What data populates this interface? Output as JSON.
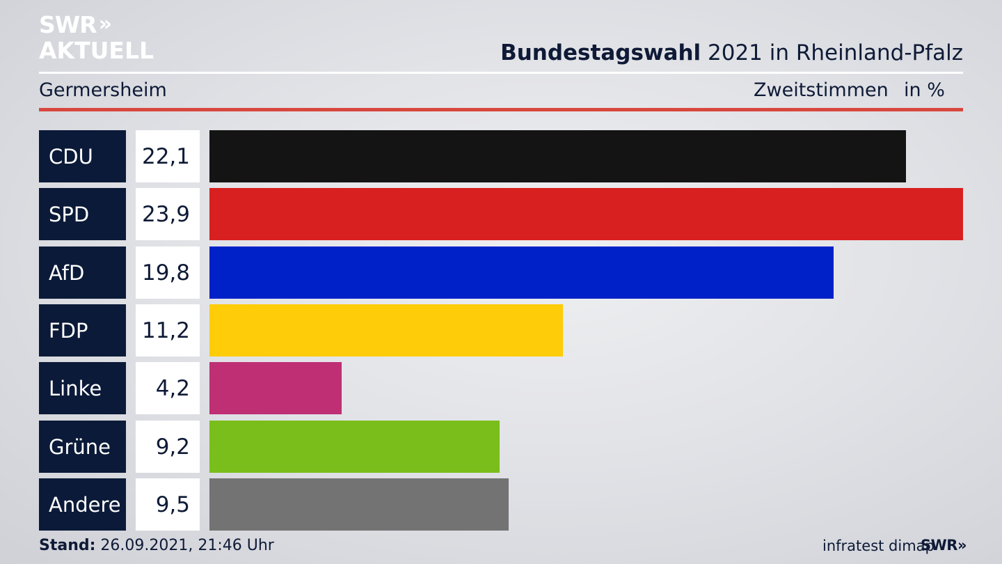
{
  "logo": {
    "line1": "SWR",
    "chevrons": "»",
    "line2": "AKTUELL"
  },
  "header": {
    "title_bold": "Bundestagswahl",
    "title_rest": " 2021 in Rheinland-Pfalz",
    "region": "Germersheim",
    "metric": "Zweitstimmen",
    "unit": "in %"
  },
  "chart_data": {
    "type": "bar",
    "orientation": "horizontal",
    "categories": [
      "CDU",
      "SPD",
      "AfD",
      "FDP",
      "Linke",
      "Grüne",
      "Andere"
    ],
    "values": [
      22.1,
      23.9,
      19.8,
      11.2,
      4.2,
      9.2,
      9.5
    ],
    "value_labels": [
      "22,1",
      "23,9",
      "19,8",
      "11,2",
      "4,2",
      "9,2",
      "9,5"
    ],
    "colors": [
      "#141414",
      "#d82020",
      "#0021c8",
      "#fecc08",
      "#bf2f74",
      "#79be1b",
      "#737373"
    ],
    "xlim": [
      0,
      23.9
    ]
  },
  "footer": {
    "stand_label": "Stand:",
    "stand_value": " 26.09.2021, 21:46 Uhr",
    "source": "infratest dimap",
    "brand": "SWR»"
  }
}
